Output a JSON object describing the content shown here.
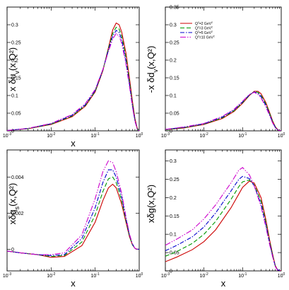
{
  "chart_data": [
    {
      "type": "line",
      "xlabel": "x",
      "ylabel": "x δu_v(x,Q²)",
      "x_scale": "log",
      "xlim": [
        0.001,
        1
      ],
      "ylim": [
        0,
        0.35
      ],
      "x_ticks": [
        0.001,
        0.01,
        0.1,
        1
      ],
      "y_ticks": [
        0,
        0.05,
        0.1,
        0.15,
        0.2,
        0.25,
        0.3
      ],
      "y_tick_labels": [
        "0",
        "0.05",
        "0.1",
        "0.15",
        "0.2",
        "0.25",
        "0.3"
      ],
      "x": [
        0.001,
        0.003,
        0.01,
        0.03,
        0.06,
        0.1,
        0.15,
        0.2,
        0.25,
        0.3,
        0.35,
        0.4,
        0.5,
        0.6,
        0.7,
        0.8,
        0.9,
        1.0
      ],
      "series": [
        {
          "color": "#cc0000",
          "dash": "",
          "values": [
            0.001,
            0.006,
            0.018,
            0.04,
            0.07,
            0.11,
            0.17,
            0.235,
            0.285,
            0.305,
            0.3,
            0.28,
            0.22,
            0.15,
            0.085,
            0.035,
            0.008,
            0.0
          ]
        },
        {
          "color": "#009900",
          "dash": "6,3",
          "values": [
            0.001,
            0.006,
            0.019,
            0.042,
            0.072,
            0.112,
            0.172,
            0.232,
            0.275,
            0.293,
            0.288,
            0.268,
            0.208,
            0.14,
            0.078,
            0.031,
            0.007,
            0.0
          ]
        },
        {
          "color": "#0000cc",
          "dash": "6,2,1.5,2",
          "values": [
            0.001,
            0.007,
            0.02,
            0.044,
            0.074,
            0.114,
            0.173,
            0.228,
            0.268,
            0.284,
            0.278,
            0.258,
            0.198,
            0.133,
            0.073,
            0.029,
            0.006,
            0.0
          ]
        },
        {
          "color": "#cc00cc",
          "dash": "8,2,1.5,2,1.5,2",
          "values": [
            0.001,
            0.007,
            0.021,
            0.046,
            0.077,
            0.117,
            0.174,
            0.224,
            0.26,
            0.275,
            0.268,
            0.248,
            0.19,
            0.126,
            0.069,
            0.027,
            0.006,
            0.0
          ]
        }
      ]
    },
    {
      "type": "line",
      "xlabel": "",
      "ylabel": "-x δd_v(x,Q²)",
      "x_scale": "log",
      "xlim": [
        0.001,
        1
      ],
      "ylim": [
        0,
        0.35
      ],
      "x_ticks": [
        0.001,
        0.01,
        0.1,
        1
      ],
      "y_ticks": [
        0,
        0.05,
        0.1,
        0.15,
        0.2,
        0.25,
        0.3,
        0.35
      ],
      "y_tick_labels": [
        "0",
        "0.05",
        "0.1",
        "0.15",
        "0.2",
        "0.25",
        "0.3",
        "0.35"
      ],
      "x": [
        0.001,
        0.003,
        0.01,
        0.03,
        0.06,
        0.1,
        0.15,
        0.2,
        0.25,
        0.3,
        0.4,
        0.5,
        0.6,
        0.7,
        0.8,
        0.9,
        1.0
      ],
      "series": [
        {
          "name": "Q²=2  GeV²",
          "color": "#cc0000",
          "dash": "",
          "values": [
            0.003,
            0.008,
            0.018,
            0.035,
            0.055,
            0.078,
            0.1,
            0.112,
            0.112,
            0.105,
            0.08,
            0.052,
            0.028,
            0.012,
            0.004,
            0.001,
            0.0
          ]
        },
        {
          "name": "Q²=3  GeV²",
          "color": "#009900",
          "dash": "6,3",
          "values": [
            0.003,
            0.009,
            0.019,
            0.037,
            0.057,
            0.08,
            0.101,
            0.111,
            0.109,
            0.101,
            0.076,
            0.049,
            0.026,
            0.011,
            0.004,
            0.001,
            0.0
          ]
        },
        {
          "name": "Q²=5  GeV²",
          "color": "#0000cc",
          "dash": "6,2,1.5,2",
          "values": [
            0.004,
            0.01,
            0.02,
            0.039,
            0.059,
            0.082,
            0.102,
            0.11,
            0.106,
            0.097,
            0.072,
            0.046,
            0.024,
            0.01,
            0.003,
            0.001,
            0.0
          ]
        },
        {
          "name": "Q²=10 GeV²",
          "color": "#cc00cc",
          "dash": "8,2,1.5,2,1.5,2",
          "values": [
            0.004,
            0.011,
            0.021,
            0.041,
            0.061,
            0.084,
            0.103,
            0.109,
            0.103,
            0.093,
            0.068,
            0.043,
            0.022,
            0.009,
            0.003,
            0.001,
            0.0
          ]
        }
      ],
      "legend_position": "top-right"
    },
    {
      "type": "line",
      "xlabel": "x",
      "ylabel": "xδq_s(x,Q²)",
      "x_scale": "log",
      "xlim": [
        0.001,
        1
      ],
      "ylim": [
        -0.0012,
        0.0055
      ],
      "x_ticks": [
        0.001,
        0.01,
        0.1,
        1
      ],
      "y_ticks": [
        0,
        0.002,
        0.004
      ],
      "y_tick_labels": [
        "0",
        "0.002",
        "0.004"
      ],
      "x": [
        0.001,
        0.002,
        0.005,
        0.01,
        0.02,
        0.05,
        0.1,
        0.15,
        0.2,
        0.25,
        0.3,
        0.4,
        0.5,
        0.6,
        0.7,
        0.8,
        0.9,
        1.0
      ],
      "series": [
        {
          "color": "#cc0000",
          "dash": "",
          "values": [
            -0.0001,
            -0.0002,
            -0.0003,
            -0.00045,
            -0.0004,
            0.0002,
            0.0015,
            0.0027,
            0.0034,
            0.0036,
            0.0034,
            0.0025,
            0.0015,
            0.0007,
            0.00025,
            5e-05,
            0.0,
            0.0
          ]
        },
        {
          "color": "#009900",
          "dash": "6,3",
          "values": [
            -0.0001,
            -0.0002,
            -0.0003,
            -0.0004,
            -0.00035,
            0.0004,
            0.0019,
            0.0032,
            0.0039,
            0.004,
            0.0037,
            0.0027,
            0.0016,
            0.00075,
            0.00025,
            5e-05,
            0.0,
            0.0
          ]
        },
        {
          "color": "#0000cc",
          "dash": "6,2,1.5,2",
          "values": [
            -0.0001,
            -0.0002,
            -0.0003,
            -0.00035,
            -0.0003,
            0.0006,
            0.0023,
            0.0037,
            0.0044,
            0.0044,
            0.004,
            0.0029,
            0.0017,
            0.0008,
            0.0003,
            5e-05,
            0.0,
            0.0
          ]
        },
        {
          "color": "#cc00cc",
          "dash": "8,2,1.5,2,1.5,2",
          "values": [
            -0.0001,
            -0.0002,
            -0.0003,
            -0.0003,
            -0.0002,
            0.0008,
            0.0028,
            0.0043,
            0.0049,
            0.0048,
            0.0043,
            0.0031,
            0.0018,
            0.00085,
            0.0003,
            5e-05,
            0.0,
            0.0
          ]
        }
      ]
    },
    {
      "type": "line",
      "xlabel": "x",
      "ylabel": "xδg(x,Q²)",
      "x_scale": "log",
      "xlim": [
        0.001,
        1
      ],
      "ylim": [
        0,
        0.33
      ],
      "x_ticks": [
        0.001,
        0.01,
        0.1,
        1
      ],
      "y_ticks": [
        0,
        0.05,
        0.1,
        0.15,
        0.2,
        0.25,
        0.3
      ],
      "y_tick_labels": [
        "0",
        "0.05",
        "0.1",
        "0.15",
        "0.2",
        "0.25",
        "0.3"
      ],
      "x": [
        0.001,
        0.002,
        0.005,
        0.01,
        0.02,
        0.05,
        0.08,
        0.1,
        0.15,
        0.2,
        0.3,
        0.4,
        0.5,
        0.6,
        0.7,
        0.8,
        1.0
      ],
      "series": [
        {
          "color": "#cc0000",
          "dash": "",
          "values": [
            0.025,
            0.038,
            0.058,
            0.08,
            0.112,
            0.172,
            0.21,
            0.228,
            0.245,
            0.24,
            0.2,
            0.14,
            0.085,
            0.045,
            0.015,
            0.003,
            0.0
          ]
        },
        {
          "color": "#009900",
          "dash": "6,3",
          "values": [
            0.04,
            0.053,
            0.075,
            0.1,
            0.135,
            0.195,
            0.23,
            0.243,
            0.248,
            0.235,
            0.19,
            0.132,
            0.08,
            0.042,
            0.014,
            0.003,
            0.0
          ]
        },
        {
          "color": "#0000cc",
          "dash": "6,2,1.5,2",
          "values": [
            0.055,
            0.07,
            0.093,
            0.12,
            0.158,
            0.218,
            0.25,
            0.258,
            0.252,
            0.232,
            0.182,
            0.126,
            0.076,
            0.04,
            0.013,
            0.003,
            0.0
          ]
        },
        {
          "color": "#cc00cc",
          "dash": "8,2,1.5,2,1.5,2",
          "values": [
            0.07,
            0.087,
            0.112,
            0.142,
            0.18,
            0.24,
            0.275,
            0.282,
            0.262,
            0.232,
            0.176,
            0.12,
            0.072,
            0.038,
            0.012,
            0.002,
            0.0
          ]
        }
      ]
    }
  ]
}
